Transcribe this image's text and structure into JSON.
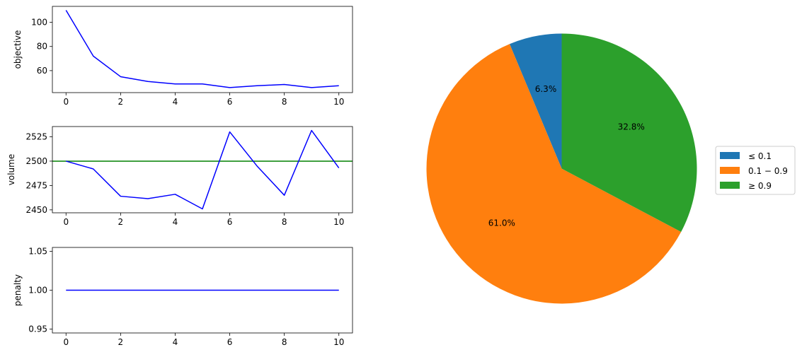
{
  "chart_data": [
    {
      "type": "line",
      "ylabel": "objective",
      "x": [
        0,
        1,
        2,
        3,
        4,
        5,
        6,
        7,
        8,
        9,
        10
      ],
      "series": [
        {
          "values": [
            110,
            72,
            55,
            51,
            49,
            49,
            46,
            47.5,
            48.5,
            46,
            47.5
          ],
          "color": "#0000ff"
        }
      ],
      "xticks": [
        "0",
        "2",
        "4",
        "6",
        "8",
        "10"
      ],
      "yticks": [
        "60",
        "80",
        "100"
      ],
      "xlim": [
        -0.5,
        10.5
      ],
      "ylim": [
        41.8,
        113.2
      ]
    },
    {
      "type": "line",
      "ylabel": "volume",
      "x": [
        0,
        1,
        2,
        3,
        4,
        5,
        6,
        7,
        8,
        9,
        10
      ],
      "series": [
        {
          "values": [
            2500,
            2492,
            2464,
            2461.5,
            2466,
            2451,
            2530,
            2495,
            2465,
            2531.5,
            2493
          ],
          "color": "#0000ff"
        }
      ],
      "hline": {
        "value": 2500,
        "color": "#008000"
      },
      "xticks": [
        "0",
        "2",
        "4",
        "6",
        "8",
        "10"
      ],
      "yticks": [
        "2450",
        "2475",
        "2500",
        "2525"
      ],
      "xlim": [
        -0.5,
        10.5
      ],
      "ylim": [
        2447,
        2535.5
      ]
    },
    {
      "type": "line",
      "ylabel": "penalty",
      "x": [
        0,
        1,
        2,
        3,
        4,
        5,
        6,
        7,
        8,
        9,
        10
      ],
      "series": [
        {
          "values": [
            1,
            1,
            1,
            1,
            1,
            1,
            1,
            1,
            1,
            1,
            1
          ],
          "color": "#0000ff"
        }
      ],
      "xticks": [
        "0",
        "2",
        "4",
        "6",
        "8",
        "10"
      ],
      "yticks": [
        "0.95",
        "1.00",
        "1.05"
      ],
      "xlim": [
        -0.5,
        10.5
      ],
      "ylim": [
        0.945,
        1.055
      ]
    },
    {
      "type": "pie",
      "slices": [
        {
          "label": "≤ 0.1",
          "value": 6.3,
          "pct_label": "6.3%",
          "color": "#1f77b4"
        },
        {
          "label": "0.1 − 0.9",
          "value": 61.0,
          "pct_label": "61.0%",
          "color": "#ff7f0e"
        },
        {
          "label": "≥ 0.9",
          "value": 32.8,
          "pct_label": "32.8%",
          "color": "#2ca02c"
        }
      ],
      "legend_position": "right",
      "direction": "counterclockwise",
      "start_angle_deg": 90
    }
  ]
}
